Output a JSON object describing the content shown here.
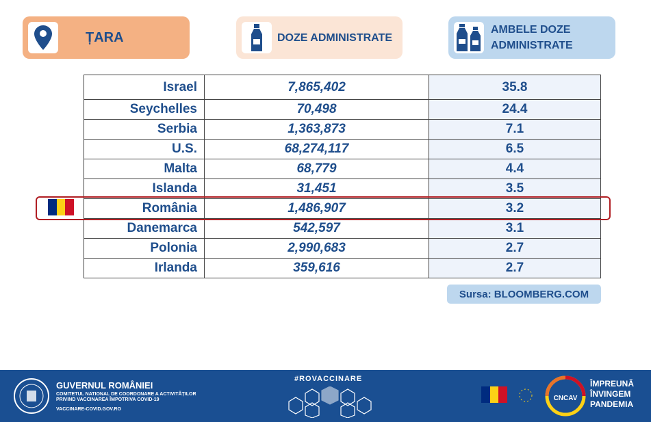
{
  "header": {
    "country_label": "ȚARA",
    "doses_label": "DOZE ADMINISTRATE",
    "both_doses_label": "AMBELE DOZE ADMINISTRATE",
    "icons": [
      "location-pin-icon",
      "vaccine-bottle-icon",
      "two-vaccine-bottles-icon"
    ]
  },
  "table": {
    "rows": [
      {
        "country": "Israel",
        "doses": "7,865,402",
        "both": "35.8"
      },
      {
        "country": "Seychelles",
        "doses": "70,498",
        "both": "24.4"
      },
      {
        "country": "Serbia",
        "doses": "1,363,873",
        "both": "7.1"
      },
      {
        "country": "U.S.",
        "doses": "68,274,117",
        "both": "6.5"
      },
      {
        "country": "Malta",
        "doses": "68,779",
        "both": "4.4"
      },
      {
        "country": "Islanda",
        "doses": "31,451",
        "both": "3.5"
      },
      {
        "country": "România",
        "doses": "1,486,907",
        "both": "3.2",
        "highlighted": true
      },
      {
        "country": "Danemarca",
        "doses": "542,597",
        "both": "3.1"
      },
      {
        "country": "Polonia",
        "doses": "2,990,683",
        "both": "2.7"
      },
      {
        "country": "Irlanda",
        "doses": "359,616",
        "both": "2.7"
      }
    ]
  },
  "source": "Sursa: BLOOMBERG.COM",
  "colors": {
    "text": "#1f4e8c",
    "highlight": "#b01e23",
    "footer": "#1a4f92"
  },
  "footer": {
    "gov_title": "GUVERNUL ROMÂNIEI",
    "committee_line1": "COMITETUL NATIONAL DE COORDONARE A ACTIVITĂȚILOR",
    "committee_line2": "PRIVIND VACCINAREA ÎMPOTRIVA COVID-19",
    "website": "VACCINARE-COVID.GOV.RO",
    "hashtag": "#ROVACCINARE",
    "slogan1": "ÎMPREUNĂ",
    "slogan2": "ÎNVINGEM",
    "slogan3": "PANDEMIA"
  }
}
